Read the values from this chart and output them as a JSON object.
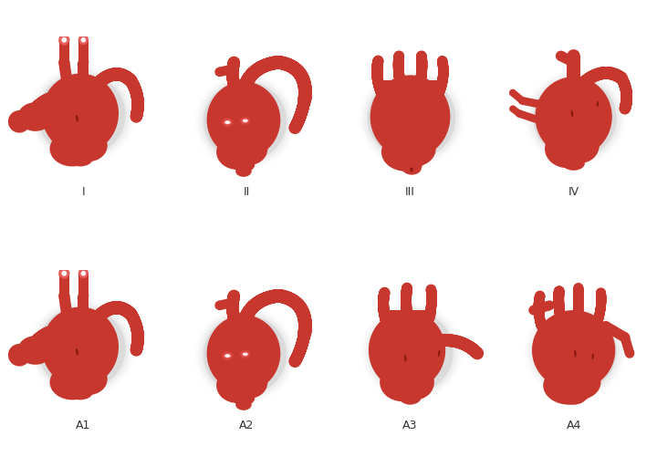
{
  "background_color": "#ffffff",
  "heart_red": "#c8372d",
  "heart_dark": "#a82a20",
  "heart_light": "#d94f43",
  "shadow_color": "#c0c0c0",
  "white_opening": "#ffffff",
  "light_pink": "#f0a090",
  "dark_slit": "#8b1a10",
  "label_color": "#333333",
  "labels_row1": [
    "I",
    "II",
    "III",
    "IV"
  ],
  "labels_row2": [
    "A1",
    "A2",
    "A3",
    "A4"
  ],
  "figsize": [
    7.2,
    5.12
  ],
  "dpi": 100
}
